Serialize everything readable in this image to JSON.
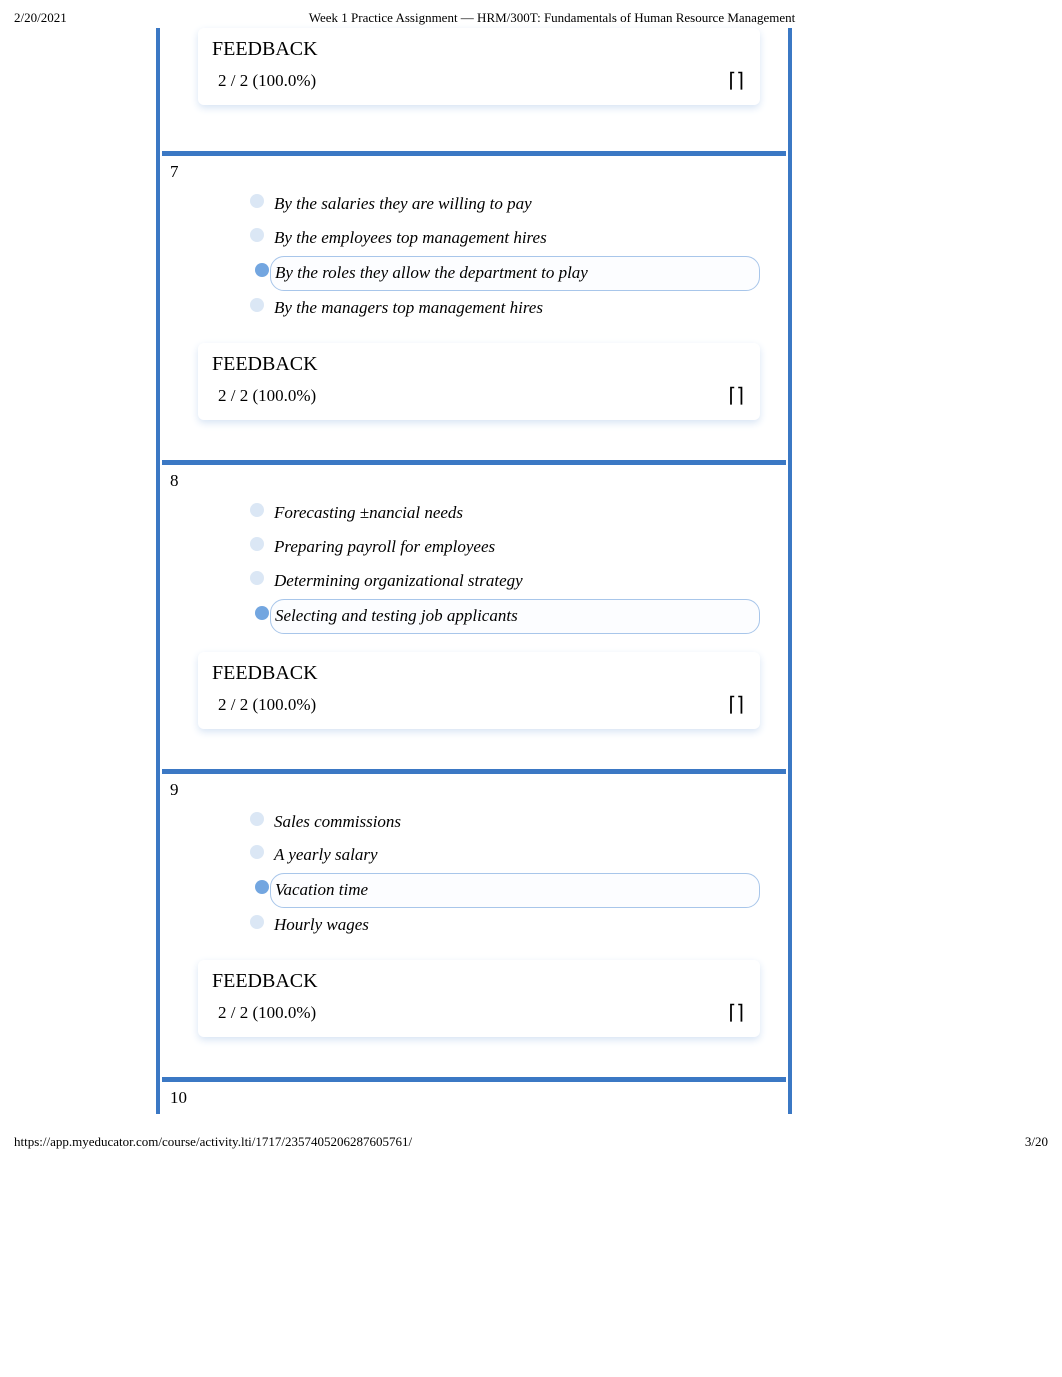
{
  "colors": {
    "frame_border": "#3b78c4",
    "separator": "#3b78c4",
    "dot_unselected": "#dbe7f5",
    "dot_selected": "#73a6e0",
    "selected_outline": "#a8c6ea",
    "selected_bg": "#fcfdff",
    "feedback_shadow": "#d7e4f4",
    "feedback_bg": "#ffffff"
  },
  "header": {
    "date": "2/20/2021",
    "title": "Week 1 Practice Assignment — HRM/300T: Fundamentals of Human Resource Management"
  },
  "feedback_label": "FEEDBACK",
  "feedback_score": "2 / 2 (100.0%)",
  "top_feedback": {
    "label": "FEEDBACK",
    "score": "2 / 2 (100.0%)"
  },
  "questions": [
    {
      "num": "7",
      "options": [
        {
          "text": "By the salaries they are willing to pay",
          "selected": false
        },
        {
          "text": "By the employees top management hires",
          "selected": false
        },
        {
          "text": "By the roles they allow the department to play",
          "selected": true
        },
        {
          "text": "By the managers top management hires",
          "selected": false
        }
      ]
    },
    {
      "num": "8",
      "options": [
        {
          "text": "Forecasting ±nancial needs",
          "selected": false
        },
        {
          "text": "Preparing payroll for employees",
          "selected": false
        },
        {
          "text": "Determining organizational strategy",
          "selected": false
        },
        {
          "text": "Selecting and testing job applicants",
          "selected": true
        }
      ]
    },
    {
      "num": "9",
      "options": [
        {
          "text": "Sales commissions",
          "selected": false
        },
        {
          "text": "A yearly salary",
          "selected": false
        },
        {
          "text": "Vacation time",
          "selected": true
        },
        {
          "text": "Hourly wages",
          "selected": false
        }
      ]
    }
  ],
  "trailing_q": "10",
  "footer": {
    "url": "https://app.myeducator.com/course/activity.lti/1717/2357405206287605761/",
    "page": "3/20"
  }
}
